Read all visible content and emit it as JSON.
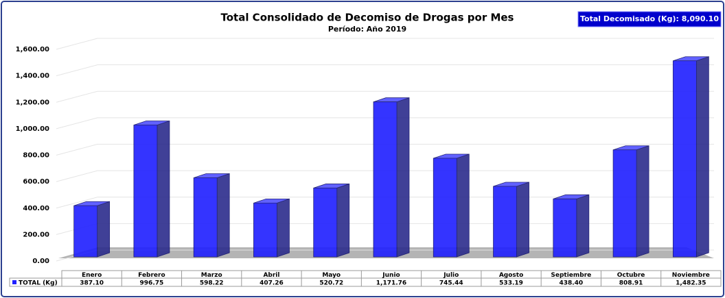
{
  "chart_data": {
    "type": "bar3d",
    "title": "Total Consolidado de Decomiso de Drogas por Mes",
    "subtitle": "Período: Año 2019",
    "annotation": "Total Decomisado (Kg): 8,090.10",
    "categories": [
      "Enero",
      "Febrero",
      "Marzo",
      "Abril",
      "Mayo",
      "Junio",
      "Julio",
      "Agosto",
      "Septiembre",
      "Octubre",
      "Noviembre"
    ],
    "series": [
      {
        "name": "TOTAL (Kg)",
        "color": "#1f1fff",
        "values": [
          387.1,
          996.75,
          598.22,
          407.26,
          520.72,
          1171.76,
          745.44,
          533.19,
          438.4,
          808.91,
          1482.35
        ],
        "value_labels": [
          "387.10",
          "996.75",
          "598.22",
          "407.26",
          "520.72",
          "1,171.76",
          "745.44",
          "533.19",
          "438.40",
          "808.91",
          "1,482.35"
        ]
      }
    ],
    "ylim": [
      0,
      1600
    ],
    "yticks": [
      {
        "value": 0,
        "label": "0.00"
      },
      {
        "value": 200,
        "label": "200.00"
      },
      {
        "value": 400,
        "label": "400.00"
      },
      {
        "value": 600,
        "label": "600.00"
      },
      {
        "value": 800,
        "label": "800.00"
      },
      {
        "value": 1000,
        "label": "1,000.00"
      },
      {
        "value": 1200,
        "label": "1,200.00"
      },
      {
        "value": 1400,
        "label": "1,400.00"
      },
      {
        "value": 1600,
        "label": "1,600.00"
      }
    ],
    "grid": true,
    "legend": "table"
  }
}
